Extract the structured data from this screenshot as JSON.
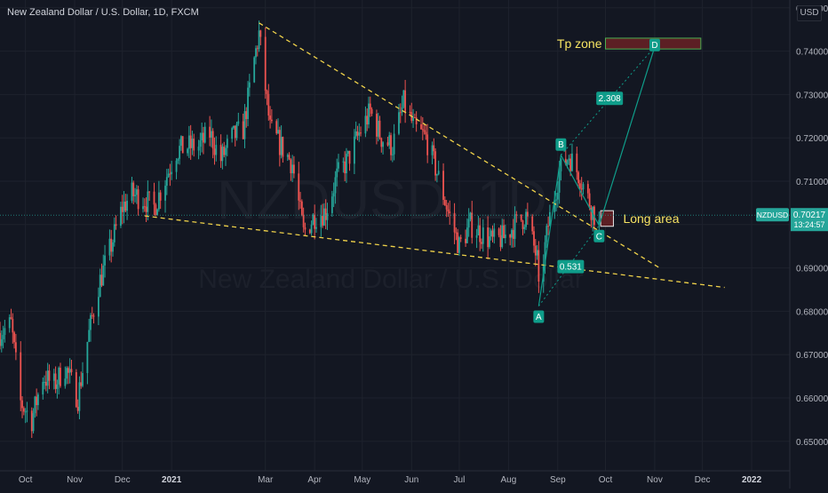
{
  "header": {
    "title": "New Zealand Dollar / U.S. Dollar, 1D, FXCM",
    "currency": "USD"
  },
  "watermark": {
    "symbol": "NZDUSD, 1D",
    "name": "New Zealand Dollar / U.S. Dollar"
  },
  "colors": {
    "background": "#131722",
    "up": "#26a69a",
    "down": "#ef5350",
    "trendline": "#f0d24a",
    "teal": "#0f9d8a",
    "zone_fill": "#5c1f24",
    "zone_border": "#4caf50",
    "annotation_text": "#f7e463",
    "axis_text": "#b2b5be",
    "grid": "#1e222d"
  },
  "chart_data": {
    "type": "candlestick",
    "symbol": "NZDUSD",
    "interval": "1D",
    "x_range": [
      "2020-09-15",
      "2022-01-25"
    ],
    "y_range": [
      0.6432,
      0.7518
    ],
    "y_ticks": [
      "0.75000",
      "0.74000",
      "0.73000",
      "0.72000",
      "0.71000",
      "0.70000",
      "0.69000",
      "0.68000",
      "0.67000",
      "0.66000",
      "0.65000"
    ],
    "x_ticks": [
      {
        "label": "Oct",
        "date": "2020-10-01",
        "bold": false
      },
      {
        "label": "Nov",
        "date": "2020-11-01",
        "bold": false
      },
      {
        "label": "Dec",
        "date": "2020-12-01",
        "bold": false
      },
      {
        "label": "2021",
        "date": "2021-01-01",
        "bold": true
      },
      {
        "label": "Mar",
        "date": "2021-03-01",
        "bold": false
      },
      {
        "label": "Apr",
        "date": "2021-04-01",
        "bold": false
      },
      {
        "label": "May",
        "date": "2021-05-01",
        "bold": false
      },
      {
        "label": "Jun",
        "date": "2021-06-01",
        "bold": false
      },
      {
        "label": "Jul",
        "date": "2021-07-01",
        "bold": false
      },
      {
        "label": "Aug",
        "date": "2021-08-01",
        "bold": false
      },
      {
        "label": "Sep",
        "date": "2021-09-01",
        "bold": false
      },
      {
        "label": "Oct",
        "date": "2021-10-01",
        "bold": false
      },
      {
        "label": "Nov",
        "date": "2021-11-01",
        "bold": false
      },
      {
        "label": "Dec",
        "date": "2021-12-01",
        "bold": false
      },
      {
        "label": "2022",
        "date": "2022-01-01",
        "bold": true
      }
    ],
    "price_path": [
      [
        "2020-09-15",
        0.675
      ],
      [
        "2020-09-22",
        0.677
      ],
      [
        "2020-09-28",
        0.659
      ],
      [
        "2020-10-05",
        0.655
      ],
      [
        "2020-10-12",
        0.665
      ],
      [
        "2020-10-19",
        0.663
      ],
      [
        "2020-10-26",
        0.667
      ],
      [
        "2020-11-03",
        0.66
      ],
      [
        "2020-11-09",
        0.673
      ],
      [
        "2020-11-16",
        0.686
      ],
      [
        "2020-11-23",
        0.694
      ],
      [
        "2020-12-01",
        0.704
      ],
      [
        "2020-12-07",
        0.707
      ],
      [
        "2020-12-14",
        0.706
      ],
      [
        "2020-12-21",
        0.704
      ],
      [
        "2021-01-04",
        0.717
      ],
      [
        "2021-01-11",
        0.718
      ],
      [
        "2021-01-18",
        0.718
      ],
      [
        "2021-01-25",
        0.721
      ],
      [
        "2021-02-01",
        0.715
      ],
      [
        "2021-02-08",
        0.72
      ],
      [
        "2021-02-15",
        0.722
      ],
      [
        "2021-02-22",
        0.738
      ],
      [
        "2021-02-25",
        0.744
      ],
      [
        "2021-03-04",
        0.722
      ],
      [
        "2021-03-11",
        0.718
      ],
      [
        "2021-03-18",
        0.714
      ],
      [
        "2021-03-25",
        0.698
      ],
      [
        "2021-04-01",
        0.702
      ],
      [
        "2021-04-08",
        0.703
      ],
      [
        "2021-04-15",
        0.711
      ],
      [
        "2021-04-22",
        0.715
      ],
      [
        "2021-04-29",
        0.721
      ],
      [
        "2021-05-06",
        0.726
      ],
      [
        "2021-05-13",
        0.72
      ],
      [
        "2021-05-20",
        0.718
      ],
      [
        "2021-05-27",
        0.728
      ],
      [
        "2021-06-03",
        0.722
      ],
      [
        "2021-06-10",
        0.72
      ],
      [
        "2021-06-17",
        0.712
      ],
      [
        "2021-06-24",
        0.703
      ],
      [
        "2021-07-01",
        0.695
      ],
      [
        "2021-07-08",
        0.7
      ],
      [
        "2021-07-15",
        0.698
      ],
      [
        "2021-07-22",
        0.696
      ],
      [
        "2021-07-29",
        0.697
      ],
      [
        "2021-08-05",
        0.7
      ],
      [
        "2021-08-12",
        0.702
      ],
      [
        "2021-08-19",
        0.692
      ],
      [
        "2021-08-20",
        0.684
      ],
      [
        "2021-08-26",
        0.7
      ],
      [
        "2021-09-02",
        0.712
      ],
      [
        "2021-09-08",
        0.716
      ],
      [
        "2021-09-15",
        0.711
      ],
      [
        "2021-09-22",
        0.704
      ],
      [
        "2021-09-27",
        0.7
      ]
    ],
    "annotations": {
      "last_price": "0.70217",
      "countdown": "13:24:57",
      "symbol_tag": "NZDUSD",
      "tp_zone_label": "Tp zone",
      "long_area_label": "Long area",
      "points": [
        "A",
        "B",
        "C",
        "D"
      ],
      "ratios": [
        "2.308",
        "0.531"
      ],
      "tp_zone": {
        "from": "2021-10-01",
        "to": "2021-11-30",
        "low": 0.7405,
        "high": 0.743
      },
      "long_zone": {
        "from": "2021-09-28",
        "to": "2021-10-06",
        "low": 0.6996,
        "high": 0.7032
      },
      "abcd": {
        "A": [
          "2021-08-20",
          0.6812
        ],
        "B": [
          "2021-09-03",
          0.716
        ],
        "C": [
          "2021-09-27",
          0.6998
        ],
        "D": [
          "2021-11-01",
          0.741
        ]
      },
      "upper_trendline": [
        [
          "2021-02-25",
          0.7465
        ],
        [
          "2021-11-05",
          0.6898
        ]
      ],
      "lower_trendline": [
        [
          "2020-12-15",
          0.702
        ],
        [
          "2021-12-15",
          0.6855
        ]
      ]
    }
  }
}
